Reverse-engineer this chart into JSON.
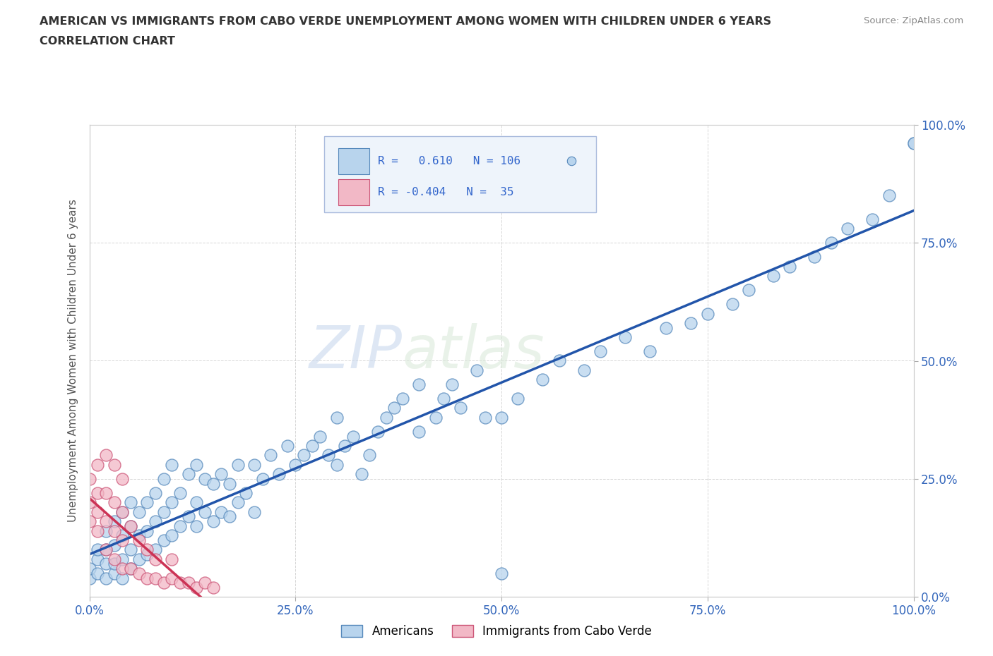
{
  "title_line1": "AMERICAN VS IMMIGRANTS FROM CABO VERDE UNEMPLOYMENT AMONG WOMEN WITH CHILDREN UNDER 6 YEARS",
  "title_line2": "CORRELATION CHART",
  "source": "Source: ZipAtlas.com",
  "ylabel": "Unemployment Among Women with Children Under 6 years",
  "xlim": [
    0,
    1.0
  ],
  "ylim": [
    0,
    1.0
  ],
  "xticks": [
    0.0,
    0.25,
    0.5,
    0.75,
    1.0
  ],
  "xticklabels": [
    "0.0%",
    "25.0%",
    "50.0%",
    "75.0%",
    "100.0%"
  ],
  "yticks": [
    0.0,
    0.25,
    0.5,
    0.75,
    1.0
  ],
  "yticklabels": [
    "0.0%",
    "25.0%",
    "50.0%",
    "75.0%",
    "100.0%"
  ],
  "american_color": "#b8d4ed",
  "american_edge_color": "#5588bb",
  "cabo_verde_color": "#f2b8c6",
  "cabo_verde_edge_color": "#cc5577",
  "american_line_color": "#2255aa",
  "cabo_verde_line_color": "#cc3355",
  "R_american": 0.61,
  "N_american": 106,
  "R_cabo_verde": -0.404,
  "N_cabo_verde": 35,
  "background_color": "#ffffff",
  "grid_color": "#cccccc",
  "watermark_line1": "ZIP",
  "watermark_line2": "atlas",
  "legend_box_color": "#eef4fb",
  "legend_box_edge": "#aabbdd",
  "american_x": [
    0.0,
    0.0,
    0.01,
    0.01,
    0.01,
    0.02,
    0.02,
    0.02,
    0.02,
    0.03,
    0.03,
    0.03,
    0.03,
    0.04,
    0.04,
    0.04,
    0.04,
    0.05,
    0.05,
    0.05,
    0.05,
    0.06,
    0.06,
    0.06,
    0.07,
    0.07,
    0.07,
    0.08,
    0.08,
    0.08,
    0.09,
    0.09,
    0.09,
    0.1,
    0.1,
    0.1,
    0.11,
    0.11,
    0.12,
    0.12,
    0.13,
    0.13,
    0.13,
    0.14,
    0.14,
    0.15,
    0.15,
    0.16,
    0.16,
    0.17,
    0.17,
    0.18,
    0.18,
    0.19,
    0.2,
    0.2,
    0.21,
    0.22,
    0.23,
    0.24,
    0.25,
    0.26,
    0.27,
    0.28,
    0.29,
    0.3,
    0.3,
    0.31,
    0.32,
    0.33,
    0.34,
    0.35,
    0.36,
    0.37,
    0.38,
    0.4,
    0.4,
    0.42,
    0.43,
    0.44,
    0.45,
    0.47,
    0.48,
    0.5,
    0.5,
    0.52,
    0.55,
    0.57,
    0.6,
    0.62,
    0.65,
    0.68,
    0.7,
    0.73,
    0.75,
    0.78,
    0.8,
    0.83,
    0.85,
    0.88,
    0.9,
    0.92,
    0.95,
    0.97,
    1.0,
    1.0
  ],
  "american_y": [
    0.04,
    0.06,
    0.05,
    0.08,
    0.1,
    0.04,
    0.07,
    0.1,
    0.14,
    0.05,
    0.07,
    0.11,
    0.16,
    0.04,
    0.08,
    0.13,
    0.18,
    0.06,
    0.1,
    0.15,
    0.2,
    0.08,
    0.13,
    0.18,
    0.09,
    0.14,
    0.2,
    0.1,
    0.16,
    0.22,
    0.12,
    0.18,
    0.25,
    0.13,
    0.2,
    0.28,
    0.15,
    0.22,
    0.17,
    0.26,
    0.15,
    0.2,
    0.28,
    0.18,
    0.25,
    0.16,
    0.24,
    0.18,
    0.26,
    0.17,
    0.24,
    0.2,
    0.28,
    0.22,
    0.18,
    0.28,
    0.25,
    0.3,
    0.26,
    0.32,
    0.28,
    0.3,
    0.32,
    0.34,
    0.3,
    0.28,
    0.38,
    0.32,
    0.34,
    0.26,
    0.3,
    0.35,
    0.38,
    0.4,
    0.42,
    0.35,
    0.45,
    0.38,
    0.42,
    0.45,
    0.4,
    0.48,
    0.38,
    0.38,
    0.05,
    0.42,
    0.46,
    0.5,
    0.48,
    0.52,
    0.55,
    0.52,
    0.57,
    0.58,
    0.6,
    0.62,
    0.65,
    0.68,
    0.7,
    0.72,
    0.75,
    0.78,
    0.8,
    0.85,
    0.96,
    0.96
  ],
  "cabo_verde_x": [
    0.0,
    0.0,
    0.0,
    0.01,
    0.01,
    0.01,
    0.01,
    0.02,
    0.02,
    0.02,
    0.02,
    0.03,
    0.03,
    0.03,
    0.03,
    0.04,
    0.04,
    0.04,
    0.04,
    0.05,
    0.05,
    0.06,
    0.06,
    0.07,
    0.07,
    0.08,
    0.08,
    0.09,
    0.1,
    0.1,
    0.11,
    0.12,
    0.13,
    0.14,
    0.15
  ],
  "cabo_verde_y": [
    0.16,
    0.2,
    0.25,
    0.14,
    0.18,
    0.22,
    0.28,
    0.1,
    0.16,
    0.22,
    0.3,
    0.08,
    0.14,
    0.2,
    0.28,
    0.06,
    0.12,
    0.18,
    0.25,
    0.06,
    0.15,
    0.05,
    0.12,
    0.04,
    0.1,
    0.04,
    0.08,
    0.03,
    0.04,
    0.08,
    0.03,
    0.03,
    0.02,
    0.03,
    0.02
  ]
}
